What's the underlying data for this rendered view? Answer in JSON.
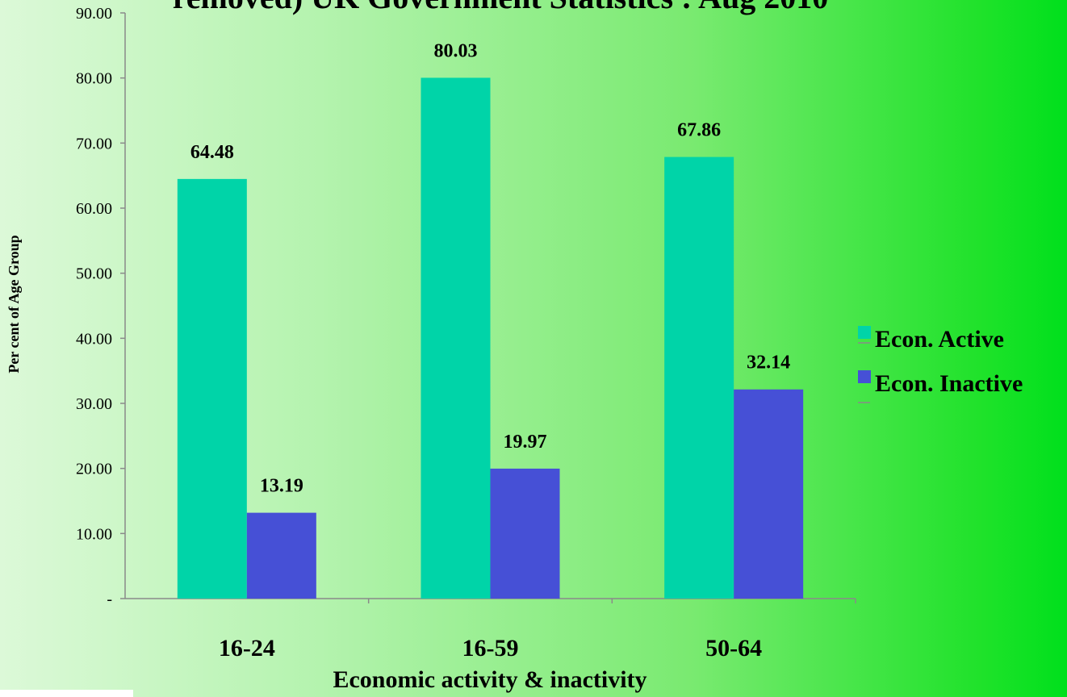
{
  "chart_data": {
    "type": "bar",
    "title": "removed) UK Government Statistics : Aug 2010",
    "xlabel": "Economic activity & inactivity",
    "ylabel": "Per cent of Age Group",
    "categories": [
      "16-24",
      "16-59",
      "50-64"
    ],
    "series": [
      {
        "name": "Econ. Active",
        "values": [
          64.48,
          80.03,
          67.86
        ],
        "labels": [
          "64.48",
          "80.03",
          "67.86"
        ],
        "color": "#00d4a8"
      },
      {
        "name": "Econ. Inactive",
        "values": [
          13.19,
          19.97,
          32.14
        ],
        "labels": [
          "13.19",
          "19.97",
          "32.14"
        ],
        "color": "#4650d6"
      }
    ],
    "ylim": [
      0,
      90
    ],
    "yticks": [
      0,
      10,
      20,
      30,
      40,
      50,
      60,
      70,
      80,
      90
    ],
    "ytick_labels": [
      "-",
      "10.00",
      "20.00",
      "30.00",
      "40.00",
      "50.00",
      "60.00",
      "70.00",
      "80.00",
      "90.00"
    ],
    "grid": false,
    "legend_position": "right"
  }
}
